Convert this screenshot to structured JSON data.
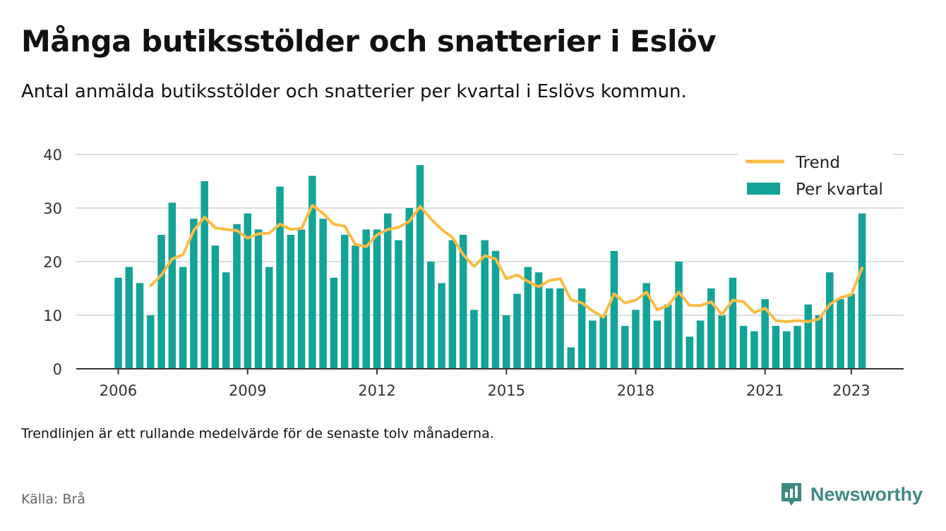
{
  "title": "Många butiksstölder och snatterier i Eslöv",
  "subtitle": "Antal anmälda butiksstölder och snatterier per kvartal i Eslövs kommun.",
  "note": "Trendlinjen är ett rullande medelvärde för de senaste tolv månaderna.",
  "source": "Källa: Brå",
  "brand": {
    "name": "Newsworthy",
    "icon": "newsworthy-logo-icon",
    "color": "#3d8a83"
  },
  "colors": {
    "bar": "#13a398",
    "trend": "#fbbc45",
    "grid": "#dddddd",
    "axis": "#333333"
  },
  "chart_data": {
    "type": "bar",
    "grid": true,
    "legend_position": "top-right",
    "ylim": [
      0,
      40
    ],
    "yticks": [
      0,
      10,
      20,
      30,
      40
    ],
    "xticks": [
      "2006",
      "2009",
      "2012",
      "2015",
      "2018",
      "2021",
      "2023"
    ],
    "xtick_positions": [
      2006,
      2009,
      2012,
      2015,
      2018,
      2021,
      2023
    ],
    "x_start": 2006,
    "series": [
      {
        "name": "Per kvartal",
        "type": "bar",
        "values": [
          17,
          19,
          16,
          10,
          25,
          31,
          19,
          28,
          35,
          23,
          18,
          27,
          29,
          26,
          19,
          34,
          25,
          26,
          36,
          28,
          17,
          25,
          23,
          26,
          26,
          29,
          24,
          30,
          38,
          20,
          16,
          24,
          25,
          11,
          24,
          22,
          10,
          14,
          19,
          18,
          15,
          15,
          4,
          15,
          9,
          10,
          22,
          8,
          11,
          16,
          9,
          12,
          20,
          6,
          9,
          15,
          10,
          17,
          8,
          7,
          13,
          8,
          7,
          8,
          12,
          10,
          18,
          13,
          14,
          29
        ]
      },
      {
        "name": "Trend",
        "type": "line",
        "values": [
          null,
          null,
          null,
          15.5,
          17.5,
          20.5,
          21.3,
          25.8,
          28.3,
          26.3,
          26.0,
          25.8,
          24.4,
          25.2,
          25.3,
          27.0,
          26.0,
          26.2,
          30.5,
          29.0,
          27.0,
          26.6,
          23.2,
          22.8,
          25.0,
          26.0,
          26.4,
          27.5,
          30.3,
          28.0,
          26.0,
          24.5,
          21.3,
          19.1,
          21.1,
          20.5,
          16.8,
          17.5,
          16.3,
          15.3,
          16.5,
          16.8,
          12.9,
          12.3,
          10.8,
          9.6,
          14.0,
          12.3,
          12.8,
          14.3,
          11.0,
          11.8,
          14.3,
          11.8,
          11.8,
          12.5,
          10.1,
          12.8,
          12.5,
          10.5,
          11.3,
          9.0,
          8.8,
          9.0,
          8.8,
          9.3,
          12.0,
          13.3,
          13.8,
          18.8
        ]
      }
    ]
  }
}
